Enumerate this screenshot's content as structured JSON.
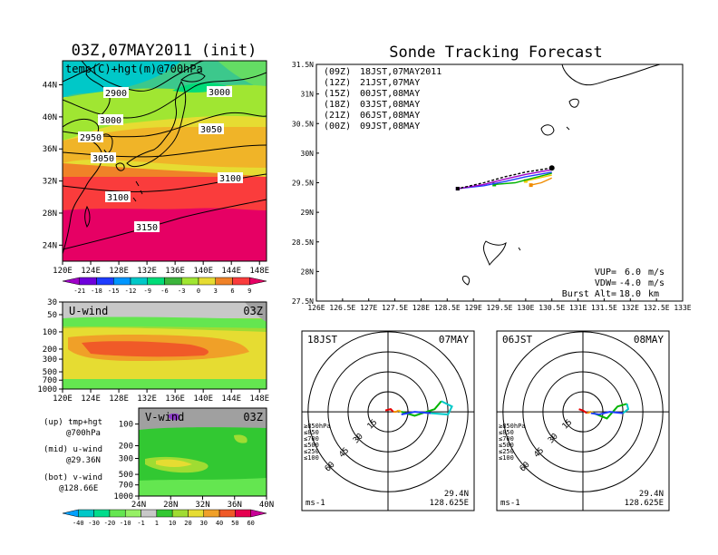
{
  "map_panel": {
    "title": "03Z,07MAY2011 (init)",
    "label": "temp(C)+hgt(m)@700hPa",
    "lat_ticks": [
      "44N",
      "40N",
      "36N",
      "32N",
      "28N",
      "24N"
    ],
    "lon_ticks": [
      "120E",
      "124E",
      "128E",
      "132E",
      "136E",
      "140E",
      "144E",
      "148E"
    ],
    "contour_labels": [
      "2900",
      "2950",
      "3000",
      "3000",
      "3050",
      "3050",
      "3100",
      "3100",
      "3150"
    ]
  },
  "temp_colorbar": {
    "labels": [
      "-21",
      "-18",
      "-15",
      "-12",
      "-9",
      "-6",
      "-3",
      "0",
      "3",
      "6",
      "9"
    ],
    "colors": [
      "#a000c8",
      "#6e00dc",
      "#1e3cff",
      "#0096ff",
      "#00c8c8",
      "#00dc78",
      "#3cb43c",
      "#a0e632",
      "#e6dc32",
      "#f08228",
      "#fa3c3c",
      "#e60064"
    ]
  },
  "uwind_panel": {
    "label": "U-wind",
    "time": "03Z",
    "p_ticks": [
      "30",
      "50",
      "100",
      "200",
      "300",
      "500",
      "700",
      "1000"
    ],
    "lon_ticks": [
      "120E",
      "124E",
      "128E",
      "132E",
      "136E",
      "140E",
      "144E",
      "148E"
    ]
  },
  "vwind_panel": {
    "label": "V-wind",
    "time": "03Z",
    "p_ticks": [
      "100",
      "200",
      "300",
      "500",
      "700",
      "1000"
    ],
    "lat_ticks": [
      "24N",
      "28N",
      "32N",
      "36N",
      "40N"
    ]
  },
  "wind_colorbar": {
    "labels": [
      "-40",
      "-30",
      "-20",
      "-10",
      "-1",
      "1",
      "10",
      "20",
      "30",
      "40",
      "50",
      "60"
    ],
    "colors": [
      "#00a0ff",
      "#00c8c8",
      "#00dc8c",
      "#64e650",
      "#96f064",
      "#c8c8c8",
      "#32c832",
      "#a0dc32",
      "#e6dc32",
      "#f0a028",
      "#f05a28",
      "#e60050",
      "#c80096"
    ]
  },
  "notes": [
    {
      "head": "(up) tmp+hgt",
      "sub": "@700hPa"
    },
    {
      "head": "(mid) u-wind",
      "sub": "@29.36N"
    },
    {
      "head": "(bot) v-wind",
      "sub": "@128.66E"
    }
  ],
  "track_panel": {
    "title": "Sonde Tracking Forecast",
    "legend": [
      {
        "code": "(09Z)",
        "text": "18JST,07MAY2011",
        "color": "#000000"
      },
      {
        "code": "(12Z)",
        "text": "21JST,07MAY",
        "color": "#a000c8"
      },
      {
        "code": "(15Z)",
        "text": "00JST,08MAY",
        "color": "#1e3cff"
      },
      {
        "code": "(18Z)",
        "text": "03JST,08MAY",
        "color": "#00b400"
      },
      {
        "code": "(21Z)",
        "text": "06JST,08MAY",
        "color": "#f0c800"
      },
      {
        "code": "(00Z)",
        "text": "09JST,08MAY",
        "color": "#f08c00"
      }
    ],
    "lat_ticks": [
      "31.5N",
      "31N",
      "30.5N",
      "30N",
      "29.5N",
      "29N",
      "28.5N",
      "28N",
      "27.5N"
    ],
    "lon_ticks": [
      "126E",
      "126.5E",
      "127E",
      "127.5E",
      "128E",
      "128.5E",
      "129E",
      "129.5E",
      "130E",
      "130.5E",
      "131E",
      "131.5E",
      "132E",
      "132.5E",
      "133E"
    ],
    "params": [
      {
        "key": "VUP=",
        "value": "6.0",
        "unit": "m/s"
      },
      {
        "key": "VDW=",
        "value": "-4.0",
        "unit": "m/s"
      },
      {
        "key": "Burst Alt=",
        "value": "18.0",
        "unit": "km"
      }
    ]
  },
  "hodo_left": {
    "time_label": "18JST",
    "date_label": "07MAY",
    "ring_labels": [
      "15",
      "30",
      "45",
      "60"
    ],
    "unit": "ms-1",
    "lat": "29.4N",
    "lon": "128.625E",
    "levels": [
      {
        "text": "≥850hPa",
        "color": "#e60000"
      },
      {
        "text": "≤850",
        "color": "#f08c00"
      },
      {
        "text": "≤700",
        "color": "#f0c800"
      },
      {
        "text": "≤500",
        "color": "#00b400"
      },
      {
        "text": "≤250",
        "color": "#00c8c8"
      },
      {
        "text": "≤100",
        "color": "#1e3cff"
      }
    ]
  },
  "hodo_right": {
    "time_label": "06JST",
    "date_label": "08MAY",
    "ring_labels": [
      "15",
      "30",
      "45",
      "60"
    ],
    "unit": "ms-1",
    "lat": "29.4N",
    "lon": "128.625E",
    "levels": [
      {
        "text": "≥850hPa",
        "color": "#e60000"
      },
      {
        "text": "≤850",
        "color": "#f08c00"
      },
      {
        "text": "≤700",
        "color": "#f0c800"
      },
      {
        "text": "≤500",
        "color": "#00b400"
      },
      {
        "text": "≤250",
        "color": "#00c8c8"
      },
      {
        "text": "≤100",
        "color": "#1e3cff"
      }
    ]
  },
  "chart_data": [
    {
      "type": "heatmap",
      "title": "03Z,07MAY2011 (init)",
      "subtitle": "temp(C)+hgt(m)@700hPa",
      "xlim": [
        120,
        149
      ],
      "ylim": [
        22,
        47
      ],
      "x_ticks": [
        120,
        124,
        128,
        132,
        136,
        140,
        144,
        148
      ],
      "y_ticks": [
        24,
        28,
        32,
        36,
        40,
        44
      ],
      "contours_m": [
        2900,
        2950,
        3000,
        3050,
        3100,
        3150
      ]
    },
    {
      "type": "heatmap",
      "title": "U-wind",
      "xlim": [
        120,
        149
      ],
      "p_levels_hPa": [
        30,
        50,
        100,
        200,
        300,
        500,
        700,
        1000
      ]
    },
    {
      "type": "heatmap",
      "title": "V-wind",
      "xlim": [
        24,
        40
      ],
      "p_levels_hPa": [
        100,
        200,
        300,
        500,
        700,
        1000
      ]
    },
    {
      "type": "line",
      "title": "Sonde Tracking Forecast",
      "xlim": [
        126,
        133
      ],
      "ylim": [
        27.5,
        31.5
      ],
      "launch": [
        130.5,
        29.75
      ],
      "series": [
        {
          "name": "(09Z) 18JST,07MAY2011",
          "color": "#000000",
          "x": [
            130.5,
            130.0,
            129.6,
            129.2,
            128.7
          ],
          "y": [
            29.75,
            29.68,
            29.6,
            29.5,
            29.4
          ]
        },
        {
          "name": "(12Z) 21JST,07MAY",
          "color": "#a000c8",
          "x": [
            130.5,
            130.0,
            129.6,
            129.2,
            128.7
          ],
          "y": [
            29.72,
            29.64,
            29.56,
            29.47,
            29.4
          ]
        },
        {
          "name": "(15Z) 00JST,08MAY",
          "color": "#1e3cff",
          "x": [
            130.5,
            130.0,
            129.6,
            129.2,
            128.7
          ],
          "y": [
            29.68,
            29.6,
            29.52,
            29.45,
            29.4
          ]
        },
        {
          "name": "(18Z) 03JST,08MAY",
          "color": "#00b400",
          "x": [
            130.5,
            130.1,
            129.8,
            129.4
          ],
          "y": [
            29.66,
            29.57,
            29.5,
            29.47
          ]
        },
        {
          "name": "(21Z) 06JST,08MAY",
          "color": "#f0c800",
          "x": [
            130.5,
            130.2,
            130.0
          ],
          "y": [
            29.63,
            29.57,
            29.53
          ]
        },
        {
          "name": "(00Z) 09JST,08MAY",
          "color": "#f08c00",
          "x": [
            130.5,
            130.3,
            130.1
          ],
          "y": [
            29.58,
            29.5,
            29.46
          ]
        }
      ]
    }
  ]
}
